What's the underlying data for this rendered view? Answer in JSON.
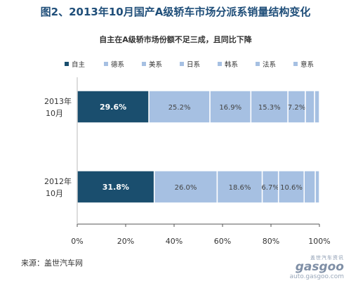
{
  "title": "图2、2013年10月国产A级轿车市场分派系销量结构变化",
  "subtitle": "自主在A级轿市场份额不足三成，且同比下降",
  "source": "来源：盖世汽车网",
  "watermark": {
    "cn": "盖世汽车资讯",
    "logo": "gasgoo",
    "url": "auto.gasgoo.com"
  },
  "chart_data": {
    "type": "bar",
    "orientation": "horizontal-stacked-100",
    "categories": [
      {
        "line1": "2013年",
        "line2": "10月"
      },
      {
        "line1": "2012年",
        "line2": "10月"
      }
    ],
    "series": [
      {
        "name": "自主",
        "color": "#1a4e6e",
        "values": [
          29.6,
          31.8
        ],
        "labels": [
          "29.6%",
          "31.8%"
        ]
      },
      {
        "name": "德系",
        "color": "#a6c0e2",
        "values": [
          25.2,
          26.0
        ],
        "labels": [
          "25.2%",
          "26.0%"
        ]
      },
      {
        "name": "美系",
        "color": "#a6c0e2",
        "values": [
          16.9,
          18.6
        ],
        "labels": [
          "16.9%",
          "18.6%"
        ]
      },
      {
        "name": "日系",
        "color": "#a6c0e2",
        "values": [
          15.3,
          6.7
        ],
        "labels": [
          "15.3%",
          "6.7%"
        ]
      },
      {
        "name": "韩系",
        "color": "#a6c0e2",
        "values": [
          7.2,
          10.6
        ],
        "labels": [
          "7.2%",
          "10.6%"
        ]
      },
      {
        "name": "法系",
        "color": "#a6c0e2",
        "values": [
          3.8,
          4.6
        ],
        "labels": [
          "",
          ""
        ]
      },
      {
        "name": "意系",
        "color": "#a6c0e2",
        "values": [
          2.0,
          1.7
        ],
        "labels": [
          "",
          ""
        ]
      }
    ],
    "xlim": [
      0,
      100
    ],
    "xticks": [
      "0%",
      "20%",
      "40%",
      "60%",
      "80%",
      "100%"
    ],
    "grid": false,
    "legend": "top"
  }
}
